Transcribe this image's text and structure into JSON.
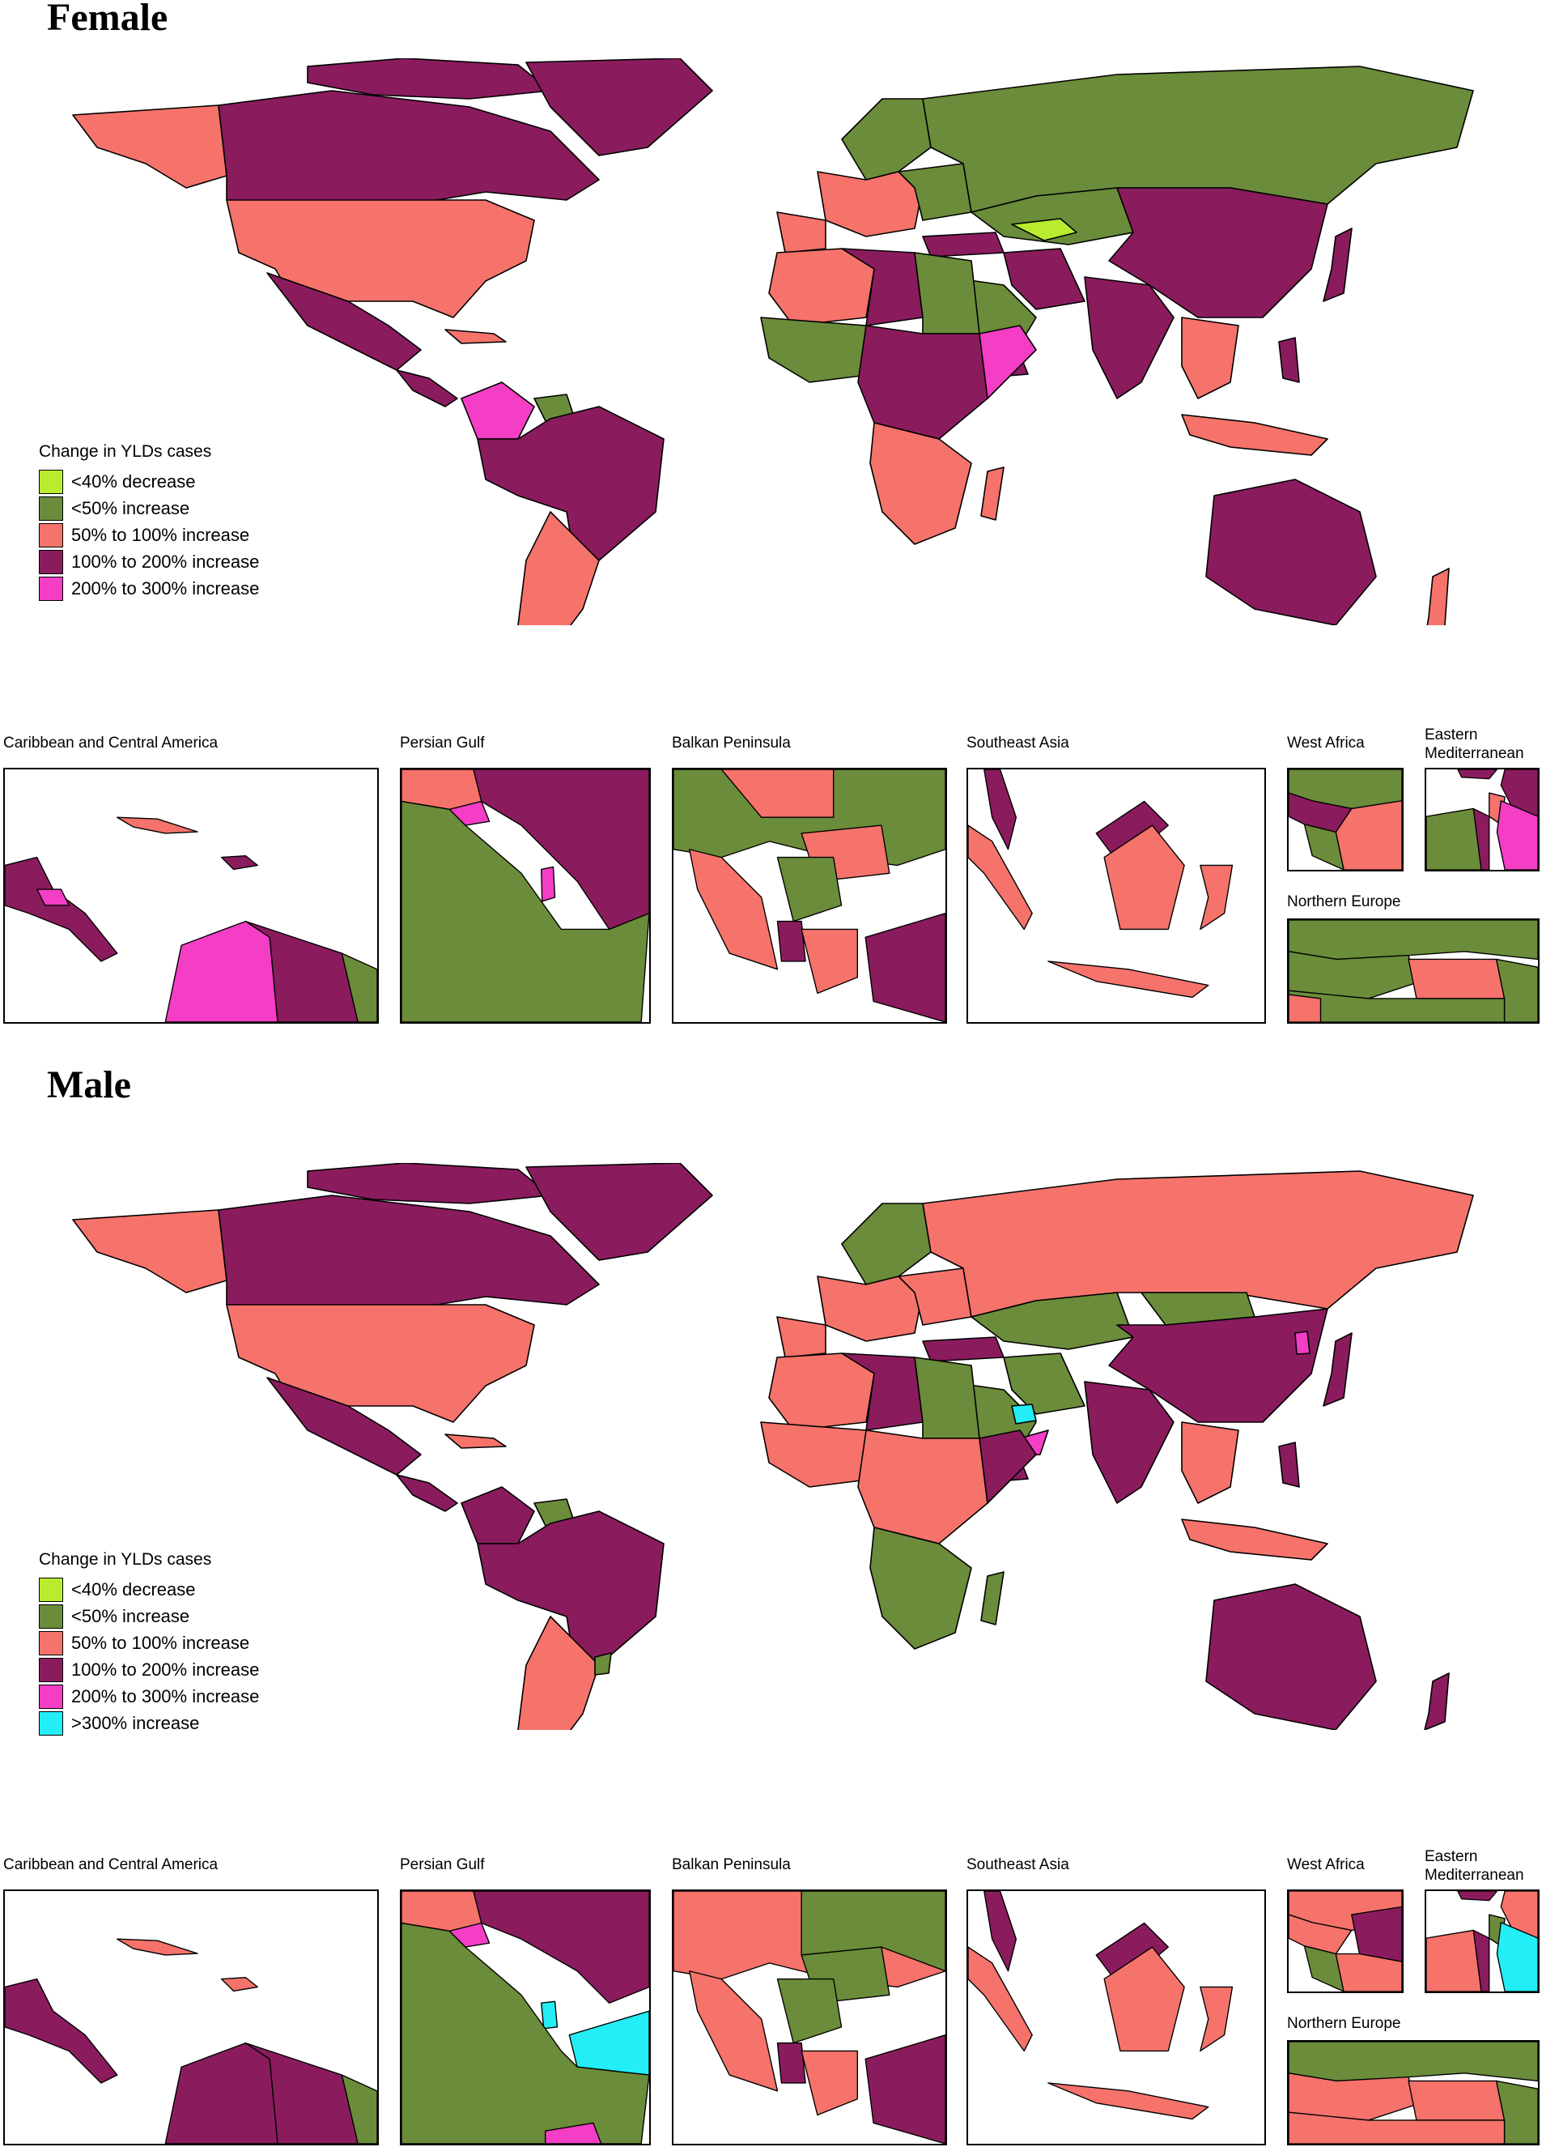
{
  "colors": {
    "decrease_40": "#b9ec2f",
    "increase_lt50": "#6b8c3a",
    "increase_50_100": "#f5736b",
    "increase_100_200": "#8a1c5e",
    "increase_200_300": "#f33ec5",
    "increase_gt300": "#23edf5",
    "water": "#ffffff",
    "border": "#000000"
  },
  "female": {
    "title": "Female",
    "legend_title": "Change in YLDs cases",
    "legend": [
      {
        "label": "<40% decrease",
        "color": "#b9ec2f"
      },
      {
        "label": "<50% increase",
        "color": "#6b8c3a"
      },
      {
        "label": "50% to 100% increase",
        "color": "#f5736b"
      },
      {
        "label": "100% to 200% increase",
        "color": "#8a1c5e"
      },
      {
        "label": "200% to 300% increase",
        "color": "#f33ec5"
      }
    ],
    "insets": {
      "caribbean": "Caribbean and Central America",
      "persian_gulf": "Persian Gulf",
      "balkan": "Balkan Peninsula",
      "southeast_asia": "Southeast Asia",
      "west_africa": "West Africa",
      "eastern_med_line1": "Eastern",
      "eastern_med_line2": "Mediterranean",
      "northern_europe": "Northern Europe"
    }
  },
  "male": {
    "title": "Male",
    "legend_title": "Change in YLDs cases",
    "legend": [
      {
        "label": "<40% decrease",
        "color": "#b9ec2f"
      },
      {
        "label": "<50% increase",
        "color": "#6b8c3a"
      },
      {
        "label": "50% to 100% increase",
        "color": "#f5736b"
      },
      {
        "label": "100% to 200% increase",
        "color": "#8a1c5e"
      },
      {
        "label": "200% to 300% increase",
        "color": "#f33ec5"
      },
      {
        "label": ">300% increase",
        "color": "#23edf5"
      }
    ],
    "insets": {
      "caribbean": "Caribbean and Central America",
      "persian_gulf": "Persian Gulf",
      "balkan": "Balkan Peninsula",
      "southeast_asia": "Southeast Asia",
      "west_africa": "West Africa",
      "eastern_med_line1": "Eastern",
      "eastern_med_line2": "Mediterranean",
      "northern_europe": "Northern Europe"
    }
  }
}
